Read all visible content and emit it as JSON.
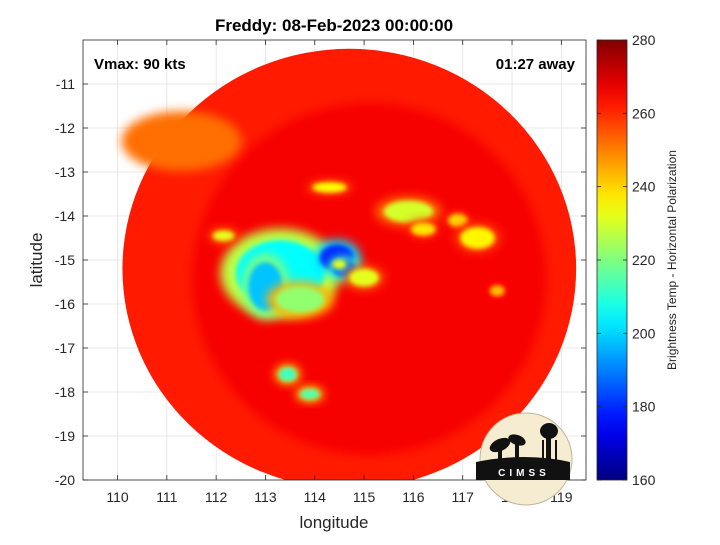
{
  "chart_data": {
    "type": "heatmap",
    "title": "Freddy: 08-Feb-2023 00:00:00",
    "xlabel": "longitude",
    "ylabel": "latitude",
    "xlim": [
      109.3,
      119.5
    ],
    "ylim": [
      -20,
      -10
    ],
    "x_ticks": [
      110,
      111,
      112,
      113,
      114,
      115,
      116,
      117,
      118,
      119
    ],
    "y_ticks": [
      -11,
      -12,
      -13,
      -14,
      -15,
      -16,
      -17,
      -18,
      -19,
      -20
    ],
    "grid": true,
    "annotations": {
      "vmax": "Vmax: 90 kts",
      "time_away": "01:27 away"
    },
    "colorbar": {
      "label": "Brightness Temp - Horizontal Polarization",
      "range": [
        160,
        280
      ],
      "ticks": [
        160,
        180,
        200,
        220,
        240,
        260,
        280
      ],
      "colormap": "jet"
    },
    "storm_center": {
      "lon": 114.5,
      "lat": -15.1
    },
    "swath": {
      "center_lon": 114.7,
      "center_lat": -15.2,
      "radius_lon": 4.6,
      "radius_lat": 5.0
    },
    "features": [
      {
        "lon": 113.3,
        "lat": -15.3,
        "rx": 0.9,
        "ry": 0.75,
        "value": 205
      },
      {
        "lon": 113.0,
        "lat": -15.6,
        "rx": 0.35,
        "ry": 0.55,
        "value": 198
      },
      {
        "lon": 114.45,
        "lat": -14.95,
        "rx": 0.35,
        "ry": 0.3,
        "value": 180
      },
      {
        "lon": 114.6,
        "lat": -15.2,
        "rx": 0.25,
        "ry": 0.2,
        "value": 190
      },
      {
        "lon": 113.7,
        "lat": -15.9,
        "rx": 0.5,
        "ry": 0.3,
        "value": 222
      },
      {
        "lon": 115.0,
        "lat": -15.4,
        "rx": 0.3,
        "ry": 0.2,
        "value": 232
      },
      {
        "lon": 115.9,
        "lat": -13.9,
        "rx": 0.5,
        "ry": 0.25,
        "value": 230
      },
      {
        "lon": 116.2,
        "lat": -14.3,
        "rx": 0.25,
        "ry": 0.15,
        "value": 238
      },
      {
        "lon": 116.9,
        "lat": -14.1,
        "rx": 0.2,
        "ry": 0.15,
        "value": 240
      },
      {
        "lon": 117.3,
        "lat": -14.5,
        "rx": 0.35,
        "ry": 0.25,
        "value": 236
      },
      {
        "lon": 114.3,
        "lat": -13.35,
        "rx": 0.35,
        "ry": 0.12,
        "value": 235
      },
      {
        "lon": 112.15,
        "lat": -14.45,
        "rx": 0.22,
        "ry": 0.12,
        "value": 232
      },
      {
        "lon": 113.45,
        "lat": -17.6,
        "rx": 0.18,
        "ry": 0.15,
        "value": 212
      },
      {
        "lon": 113.9,
        "lat": -18.05,
        "rx": 0.2,
        "ry": 0.12,
        "value": 215
      },
      {
        "lon": 117.7,
        "lat": -15.7,
        "rx": 0.15,
        "ry": 0.12,
        "value": 242
      }
    ]
  },
  "logo": {
    "text": "CIMSS"
  }
}
